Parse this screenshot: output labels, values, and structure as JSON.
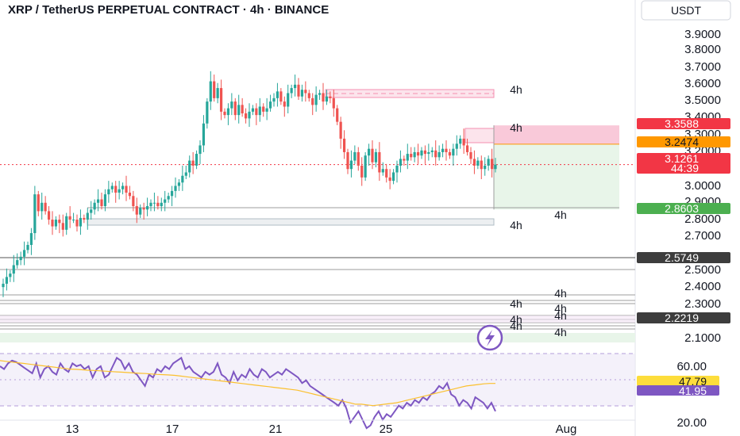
{
  "chart_data": {
    "type": "candlestick",
    "title": "XRP / TetherUS PERPETUAL CONTRACT · 4h · BINANCE",
    "currency": "USDT",
    "y_ticks": [
      "3.9000",
      "3.8000",
      "3.7000",
      "3.6000",
      "3.5000",
      "3.4000",
      "3.3000",
      "3.2000",
      "3.0000",
      "2.9000",
      "2.8000",
      "2.7000",
      "2.5000",
      "2.4000",
      "2.3000",
      "2.1000"
    ],
    "rsi_ticks": [
      "60.00",
      "20.00"
    ],
    "x_ticks": [
      "13",
      "17",
      "21",
      "25",
      "Aug"
    ],
    "price_badges": [
      {
        "value": "3.3588",
        "color": "#f23645",
        "text_color": "#ffffff"
      },
      {
        "value": "3.2474",
        "color": "#ff9800",
        "text_color": "#131722"
      },
      {
        "value": "3.1261",
        "sub": "44:39",
        "color": "#f23645",
        "text_color": "#ffffff"
      },
      {
        "value": "2.8603",
        "color": "#4caf50",
        "text_color": "#ffffff"
      },
      {
        "value": "2.5749",
        "color": "#3d3d3d",
        "text_color": "#ffffff"
      },
      {
        "value": "2.2219",
        "color": "#3d3d3d",
        "text_color": "#ffffff"
      }
    ],
    "rsi_badges": [
      {
        "value": "47.79",
        "color": "#fddd3b",
        "text_color": "#131722"
      },
      {
        "value": "41.95",
        "color": "#7e57c2",
        "text_color": "#ffffff"
      }
    ],
    "zone_labels": [
      "4h",
      "4h",
      "4h",
      "4h",
      "4h",
      "4h",
      "4h",
      "4h",
      "4h",
      "4h",
      "4h"
    ],
    "last_price": 3.1261,
    "position": {
      "stop": 3.3588,
      "entry": 3.2474,
      "target": 2.8603
    },
    "candles_ohlc_close": [
      2.42,
      2.46,
      2.48,
      2.53,
      2.56,
      2.58,
      2.62,
      2.65,
      2.72,
      2.95,
      2.85,
      2.9,
      2.85,
      2.8,
      2.76,
      2.8,
      2.78,
      2.74,
      2.82,
      2.8,
      2.8,
      2.76,
      2.81,
      2.8,
      2.84,
      2.86,
      2.9,
      2.92,
      2.88,
      2.95,
      2.98,
      3.0,
      2.96,
      2.98,
      3.0,
      2.96,
      2.94,
      2.88,
      2.83,
      2.87,
      2.86,
      2.88,
      2.9,
      2.9,
      2.88,
      2.9,
      2.92,
      2.94,
      2.97,
      3.0,
      3.02,
      3.06,
      3.08,
      3.15,
      3.12,
      3.19,
      3.24,
      3.37,
      3.5,
      3.62,
      3.52,
      3.58,
      3.44,
      3.42,
      3.46,
      3.5,
      3.42,
      3.48,
      3.43,
      3.4,
      3.44,
      3.46,
      3.42,
      3.47,
      3.44,
      3.46,
      3.5,
      3.52,
      3.56,
      3.5,
      3.47,
      3.55,
      3.58,
      3.6,
      3.53,
      3.57,
      3.55,
      3.52,
      3.48,
      3.54,
      3.55,
      3.5,
      3.53,
      3.52,
      3.46,
      3.38,
      3.28,
      3.2,
      3.1,
      3.15,
      3.2,
      3.12,
      3.05,
      3.18,
      3.22,
      3.14,
      3.2,
      3.08,
      3.1,
      3.05,
      3.03,
      3.08,
      3.12,
      3.16,
      3.15,
      3.19,
      3.17,
      3.2,
      3.18,
      3.21,
      3.19,
      3.2,
      3.21,
      3.17,
      3.2,
      3.22,
      3.2,
      3.18,
      3.22,
      3.25,
      3.28,
      3.24,
      3.2,
      3.16,
      3.12,
      3.15,
      3.1,
      3.12,
      3.16,
      3.1,
      3.126
    ],
    "rsi_values": [
      60,
      58,
      62,
      64,
      63,
      61,
      59,
      57,
      55,
      62,
      52,
      58,
      60,
      56,
      54,
      62,
      58,
      56,
      62,
      60,
      61,
      58,
      60,
      52,
      58,
      60,
      52,
      54,
      60,
      66,
      64,
      58,
      62,
      56,
      54,
      50,
      46,
      54,
      52,
      58,
      56,
      60,
      58,
      62,
      64,
      66,
      58,
      60,
      56,
      54,
      52,
      56,
      54,
      56,
      62,
      54,
      52,
      48,
      56,
      50,
      54,
      52,
      58,
      54,
      52,
      58,
      56,
      52,
      54,
      56,
      54,
      58,
      56,
      54,
      52,
      48,
      50,
      46,
      44,
      42,
      40,
      38,
      36,
      34,
      32,
      36,
      30,
      20,
      24,
      28,
      22,
      16,
      18,
      24,
      28,
      22,
      26,
      24,
      28,
      32,
      30,
      34,
      32,
      36,
      34,
      38,
      36,
      40,
      42,
      46,
      44,
      48,
      40,
      38,
      32,
      36,
      34,
      30,
      38,
      36,
      34,
      30,
      34,
      28
    ],
    "rsi_ma": [
      64,
      63.5,
      63,
      62.5,
      62,
      61.5,
      61,
      60.5,
      60,
      59.5,
      59,
      58.5,
      58,
      57.8,
      57.5,
      57.2,
      57,
      56.8,
      56.5,
      56.2,
      56,
      55.8,
      55.5,
      55.2,
      55,
      54.8,
      54.5,
      54.2,
      54,
      53.8,
      53.5,
      53,
      52.5,
      52,
      51.5,
      51,
      50.5,
      50,
      49.5,
      49,
      48.5,
      48,
      47.5,
      47,
      46.5,
      46,
      45.5,
      45,
      44.5,
      44,
      43.5,
      43,
      42,
      41,
      40,
      39,
      38,
      37,
      36,
      35,
      34,
      33,
      33,
      32.5,
      32,
      32.5,
      33,
      33.5,
      34,
      35,
      36,
      37,
      38,
      39,
      40,
      41,
      42,
      43,
      44,
      45,
      46,
      46.5,
      47,
      47.5,
      47.8,
      47.79
    ]
  }
}
